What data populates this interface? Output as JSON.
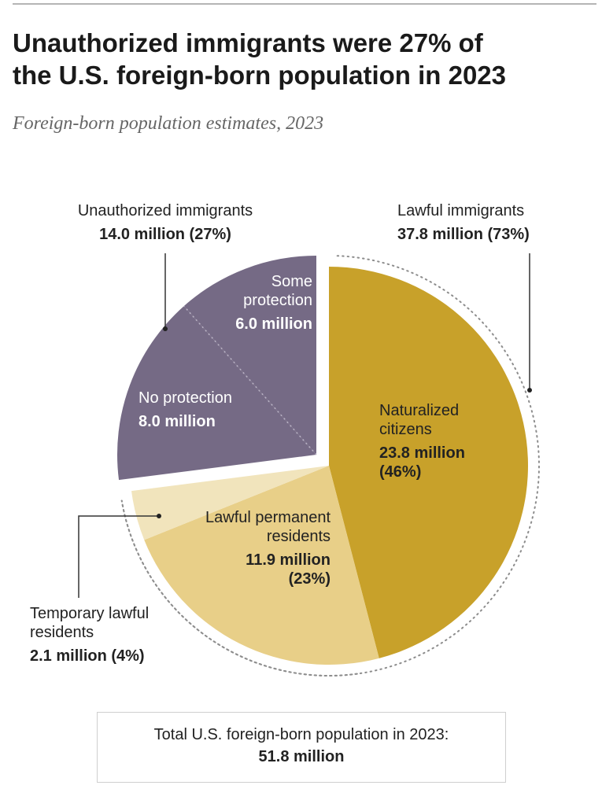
{
  "title": "Unauthorized immigrants were 27% of\nthe U.S. foreign-born population in 2023",
  "subtitle": "Foreign-born population estimates, 2023",
  "labels": {
    "unauthorized_name": "Unauthorized immigrants",
    "unauthorized_value": "14.0 million (27%)",
    "lawful_name": "Lawful immigrants",
    "lawful_value": "37.8 million (73%)",
    "some_protection_name": "Some protection",
    "some_protection_value": "6.0 million",
    "no_protection_name": "No protection",
    "no_protection_value": "8.0 million",
    "naturalized_name": "Naturalized citizens",
    "naturalized_value": "23.8 million (46%)",
    "lpr_name": "Lawful permanent residents",
    "lpr_value_line1": "11.9 million",
    "lpr_value_line2": "(23%)",
    "temporary_name": "Temporary lawful residents",
    "temporary_value": "2.1 million (4%)"
  },
  "total": {
    "label": "Total U.S. foreign-born population in 2023:",
    "value": "51.8 million"
  },
  "colors": {
    "naturalized": "#c8a12a",
    "lawful_permanent": "#e8cf88",
    "temporary": "#f1e4bc",
    "unauthorized": "#756a85",
    "label_on_dark": "#ffffff"
  },
  "chart_data": {
    "type": "pie",
    "unit": "million",
    "total": 51.8,
    "groups": [
      {
        "name": "Unauthorized immigrants",
        "value": 14.0,
        "percent": 27,
        "exploded": true
      },
      {
        "name": "Lawful immigrants",
        "value": 37.8,
        "percent": 73,
        "exploded": false
      }
    ],
    "slices": [
      {
        "name": "Naturalized citizens",
        "value": 23.8,
        "percent": 46,
        "group": "Lawful immigrants"
      },
      {
        "name": "Lawful permanent residents",
        "value": 11.9,
        "percent": 23,
        "group": "Lawful immigrants"
      },
      {
        "name": "Temporary lawful residents",
        "value": 2.1,
        "percent": 4,
        "group": "Lawful immigrants"
      },
      {
        "name": "No protection",
        "value": 8.0,
        "group": "Unauthorized immigrants"
      },
      {
        "name": "Some protection",
        "value": 6.0,
        "group": "Unauthorized immigrants"
      }
    ]
  }
}
